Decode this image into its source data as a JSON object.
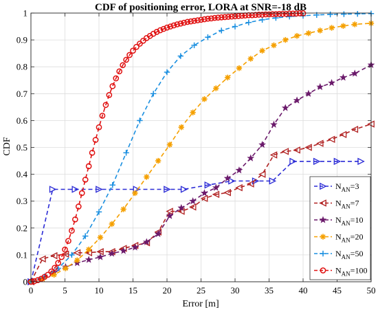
{
  "chart_data": {
    "type": "line",
    "title": "CDF of positioning error, LORA at SNR=-18 dB",
    "xlabel": "Error [m]",
    "ylabel": "CDF",
    "xlim": [
      0,
      50
    ],
    "ylim": [
      0,
      1
    ],
    "xticks": [
      "0",
      "5",
      "10",
      "15",
      "20",
      "25",
      "30",
      "35",
      "40",
      "45",
      "50"
    ],
    "yticks": [
      "0",
      "0.1",
      "0.2",
      "0.3",
      "0.4",
      "0.5",
      "0.6",
      "0.7",
      "0.8",
      "0.9",
      "1"
    ],
    "grid": true,
    "legend_position": "bottom-right",
    "series": [
      {
        "name_main": "N",
        "name_sub": "AN",
        "name_suffix": "=3",
        "color": "#2b2bd6",
        "marker": "triangle-right",
        "linestyle": "dashed",
        "x": [
          0,
          3.2,
          6.5,
          10,
          15.5,
          20,
          22.5,
          26,
          29.5,
          33,
          35.5,
          38.5,
          42,
          45,
          48.5
        ],
        "y": [
          0,
          0.344,
          0.344,
          0.344,
          0.344,
          0.344,
          0.344,
          0.36,
          0.375,
          0.375,
          0.375,
          0.448,
          0.448,
          0.448,
          0.448
        ]
      },
      {
        "name_main": "N",
        "name_sub": "AN",
        "name_suffix": "=7",
        "color": "#b02020",
        "marker": "triangle-left",
        "linestyle": "dashed",
        "x": [
          0,
          1.7,
          3.4,
          5.1,
          6.8,
          8.5,
          10.2,
          11.9,
          13.6,
          15.3,
          17,
          18.7,
          20.4,
          22.1,
          23.8,
          25.5,
          27.2,
          28.9,
          30.6,
          32.3,
          34,
          35.7,
          37.4,
          39.1,
          40.8,
          42.5,
          44.2,
          45.9,
          47.6,
          50
        ],
        "y": [
          0,
          0.085,
          0.097,
          0.103,
          0.108,
          0.108,
          0.112,
          0.112,
          0.124,
          0.135,
          0.145,
          0.185,
          0.262,
          0.262,
          0.278,
          0.31,
          0.325,
          0.332,
          0.35,
          0.364,
          0.4,
          0.472,
          0.485,
          0.49,
          0.5,
          0.515,
          0.53,
          0.548,
          0.567,
          0.587
        ]
      },
      {
        "name_main": "N",
        "name_sub": "AN",
        "name_suffix": "=10",
        "color": "#6b1a6b",
        "marker": "star",
        "linestyle": "dashed",
        "x": [
          0,
          1.7,
          3.4,
          5.1,
          6.8,
          8.5,
          10.2,
          11.9,
          13.6,
          15.3,
          17,
          18.7,
          20.4,
          22.1,
          23.8,
          25.5,
          27.2,
          28.9,
          30.6,
          32.3,
          34,
          35.7,
          37.4,
          39.1,
          40.8,
          42.5,
          44.2,
          45.9,
          47.6,
          50
        ],
        "y": [
          0,
          0.012,
          0.035,
          0.055,
          0.07,
          0.082,
          0.092,
          0.105,
          0.115,
          0.128,
          0.148,
          0.178,
          0.245,
          0.275,
          0.3,
          0.33,
          0.35,
          0.385,
          0.415,
          0.46,
          0.51,
          0.585,
          0.647,
          0.675,
          0.7,
          0.725,
          0.74,
          0.76,
          0.775,
          0.807
        ]
      },
      {
        "name_main": "N",
        "name_sub": "AN",
        "name_suffix": "=20",
        "color": "#f5a000",
        "marker": "asterisk",
        "linestyle": "dashed",
        "x": [
          0,
          1.7,
          3.4,
          5.1,
          6.8,
          8.5,
          10.2,
          11.9,
          13.6,
          15.3,
          17,
          18.7,
          20.4,
          22.1,
          23.8,
          25.5,
          27.2,
          28.9,
          30.6,
          32.3,
          34,
          35.7,
          37.4,
          39.1,
          40.8,
          42.5,
          44.2,
          45.9,
          47.6,
          50
        ],
        "y": [
          0,
          0.01,
          0.026,
          0.05,
          0.08,
          0.12,
          0.165,
          0.215,
          0.27,
          0.33,
          0.39,
          0.45,
          0.51,
          0.575,
          0.63,
          0.68,
          0.72,
          0.76,
          0.795,
          0.83,
          0.86,
          0.88,
          0.9,
          0.915,
          0.925,
          0.935,
          0.945,
          0.952,
          0.958,
          0.962
        ]
      },
      {
        "name_main": "N",
        "name_sub": "AN",
        "name_suffix": "=50",
        "color": "#1a8fe0",
        "marker": "plus",
        "linestyle": "dashed",
        "x": [
          0,
          2,
          4,
          6,
          8,
          10,
          12,
          14,
          16,
          18,
          20,
          22,
          24,
          26,
          28,
          30,
          32,
          34,
          36,
          38,
          40,
          42,
          44,
          46,
          48,
          50
        ],
        "y": [
          0,
          0.02,
          0.05,
          0.1,
          0.17,
          0.26,
          0.36,
          0.48,
          0.6,
          0.7,
          0.78,
          0.84,
          0.88,
          0.91,
          0.935,
          0.95,
          0.965,
          0.975,
          0.982,
          0.987,
          0.99,
          0.993,
          0.995,
          0.996,
          0.997,
          0.998
        ]
      },
      {
        "name_main": "N",
        "name_sub": "AN",
        "name_suffix": "=100",
        "color": "#e01010",
        "marker": "circle",
        "linestyle": "dashed",
        "x": [
          0,
          0.5,
          1,
          1.5,
          2,
          2.5,
          3,
          3.5,
          4,
          4.5,
          5,
          5.5,
          6,
          6.5,
          7,
          7.5,
          8,
          8.5,
          9,
          9.5,
          10,
          10.5,
          11,
          11.5,
          12,
          12.5,
          13,
          13.5,
          14,
          14.5,
          15,
          15.5,
          16,
          16.5,
          17,
          17.5,
          18,
          18.5,
          19,
          19.5,
          20,
          20.5,
          21,
          21.5,
          22,
          22.5,
          23,
          23.5,
          24,
          24.5,
          25,
          25.5,
          26,
          26.5,
          27,
          27.5,
          28,
          28.5,
          29,
          29.5,
          30,
          30.5,
          31,
          31.5,
          32,
          32.5,
          33,
          33.5,
          34,
          34.5,
          35,
          35.5,
          36,
          36.5,
          37,
          37.5,
          38,
          38.5,
          39,
          39.5,
          40
        ],
        "y": [
          0,
          0.002,
          0.006,
          0.011,
          0.018,
          0.026,
          0.038,
          0.052,
          0.07,
          0.092,
          0.12,
          0.152,
          0.19,
          0.232,
          0.28,
          0.33,
          0.38,
          0.43,
          0.48,
          0.528,
          0.575,
          0.618,
          0.658,
          0.695,
          0.728,
          0.757,
          0.783,
          0.806,
          0.826,
          0.844,
          0.86,
          0.874,
          0.886,
          0.897,
          0.907,
          0.915,
          0.923,
          0.93,
          0.936,
          0.941,
          0.946,
          0.95,
          0.954,
          0.958,
          0.961,
          0.964,
          0.967,
          0.969,
          0.971,
          0.973,
          0.975,
          0.977,
          0.979,
          0.98,
          0.982,
          0.983,
          0.984,
          0.985,
          0.986,
          0.987,
          0.988,
          0.989,
          0.99,
          0.991,
          0.992,
          0.992,
          0.993,
          0.994,
          0.994,
          0.995,
          0.995,
          0.996,
          0.996,
          0.997,
          0.997,
          0.997,
          0.998,
          0.998,
          0.998,
          0.999,
          0.999
        ]
      }
    ]
  }
}
